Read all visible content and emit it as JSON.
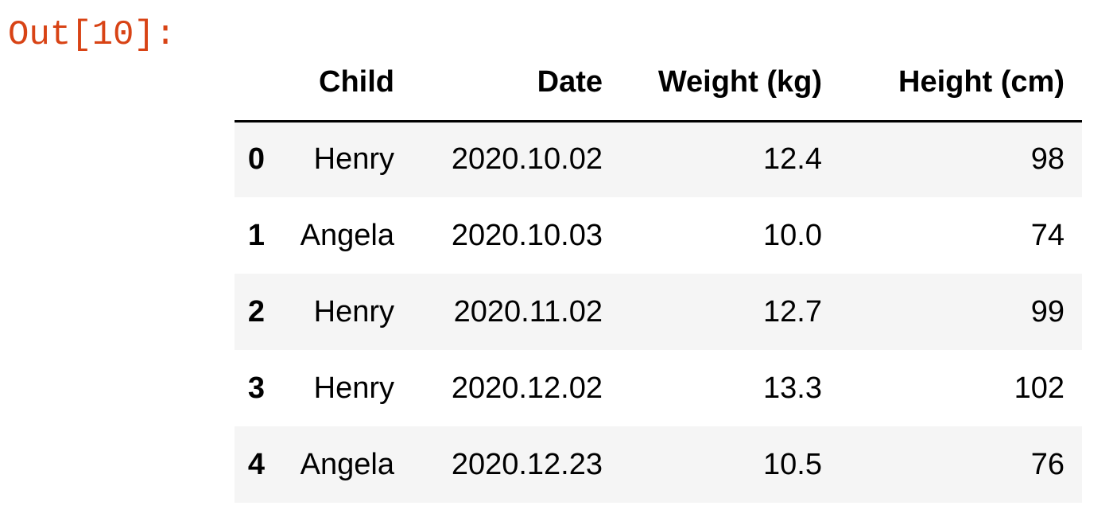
{
  "cell": {
    "prompt": "Out[10]:"
  },
  "dataframe": {
    "columns": [
      "",
      "Child",
      "Date",
      "Weight (kg)",
      "Height (cm)"
    ],
    "rows": [
      {
        "index": "0",
        "child": "Henry",
        "date": "2020.10.02",
        "weight": "12.4",
        "height": "98"
      },
      {
        "index": "1",
        "child": "Angela",
        "date": "2020.10.03",
        "weight": "10.0",
        "height": "74"
      },
      {
        "index": "2",
        "child": "Henry",
        "date": "2020.11.02",
        "weight": "12.7",
        "height": "99"
      },
      {
        "index": "3",
        "child": "Henry",
        "date": "2020.12.02",
        "weight": "13.3",
        "height": "102"
      },
      {
        "index": "4",
        "child": "Angela",
        "date": "2020.12.23",
        "weight": "10.5",
        "height": "76"
      }
    ]
  },
  "colors": {
    "prompt": "#d84315",
    "striped_row": "#f5f5f5",
    "header_rule": "#000000"
  }
}
